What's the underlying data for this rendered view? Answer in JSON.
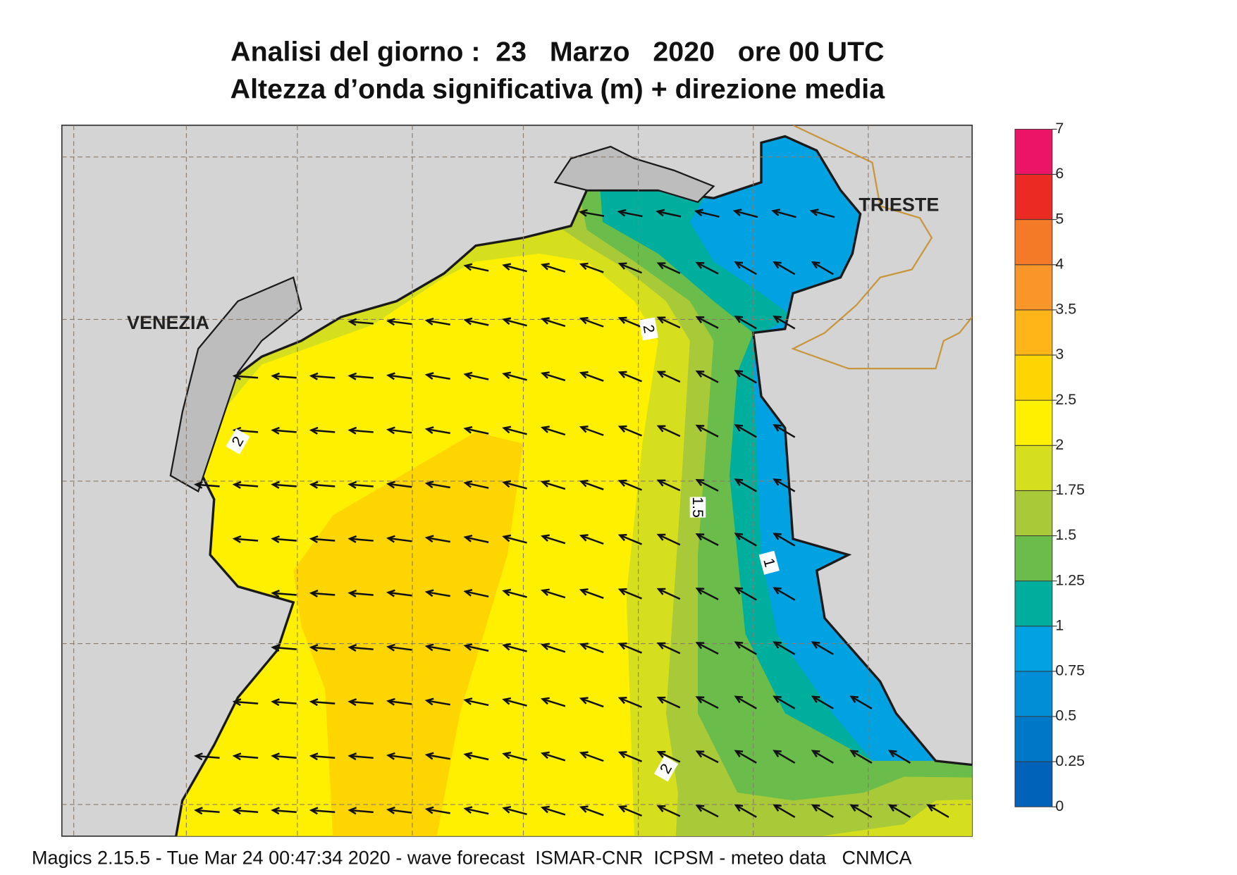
{
  "header": {
    "title_lines": [
      "Analisi del giorno :  23   Marzo   2020   ore 00 UTC",
      "Altezza d’onda significativa (m) + direzione media"
    ]
  },
  "map": {
    "place_labels": [
      "VENEZIA",
      "TRIESTE"
    ],
    "contour_labels": [
      "2",
      "2",
      "1.5",
      "1",
      "2"
    ]
  },
  "colorbar": {
    "ticks": [
      0,
      0.25,
      0.5,
      0.75,
      1,
      1.25,
      1.5,
      1.75,
      2,
      2.5,
      3,
      3.5,
      4,
      5,
      6,
      7
    ],
    "colors": [
      "#0062b8",
      "#0078c8",
      "#008ed6",
      "#00a2e2",
      "#00ae9e",
      "#6abd4a",
      "#a8ca38",
      "#d6df1e",
      "#fff000",
      "#ffd500",
      "#ffb418",
      "#f8962a",
      "#f47a28",
      "#ec2a24",
      "#ec1466"
    ]
  },
  "footer": "Magics 2.15.5 - Tue Mar 24 00:47:34 2020 - wave forecast  ISMAR-CNR  ICPSM - meteo data   CNMCA"
}
